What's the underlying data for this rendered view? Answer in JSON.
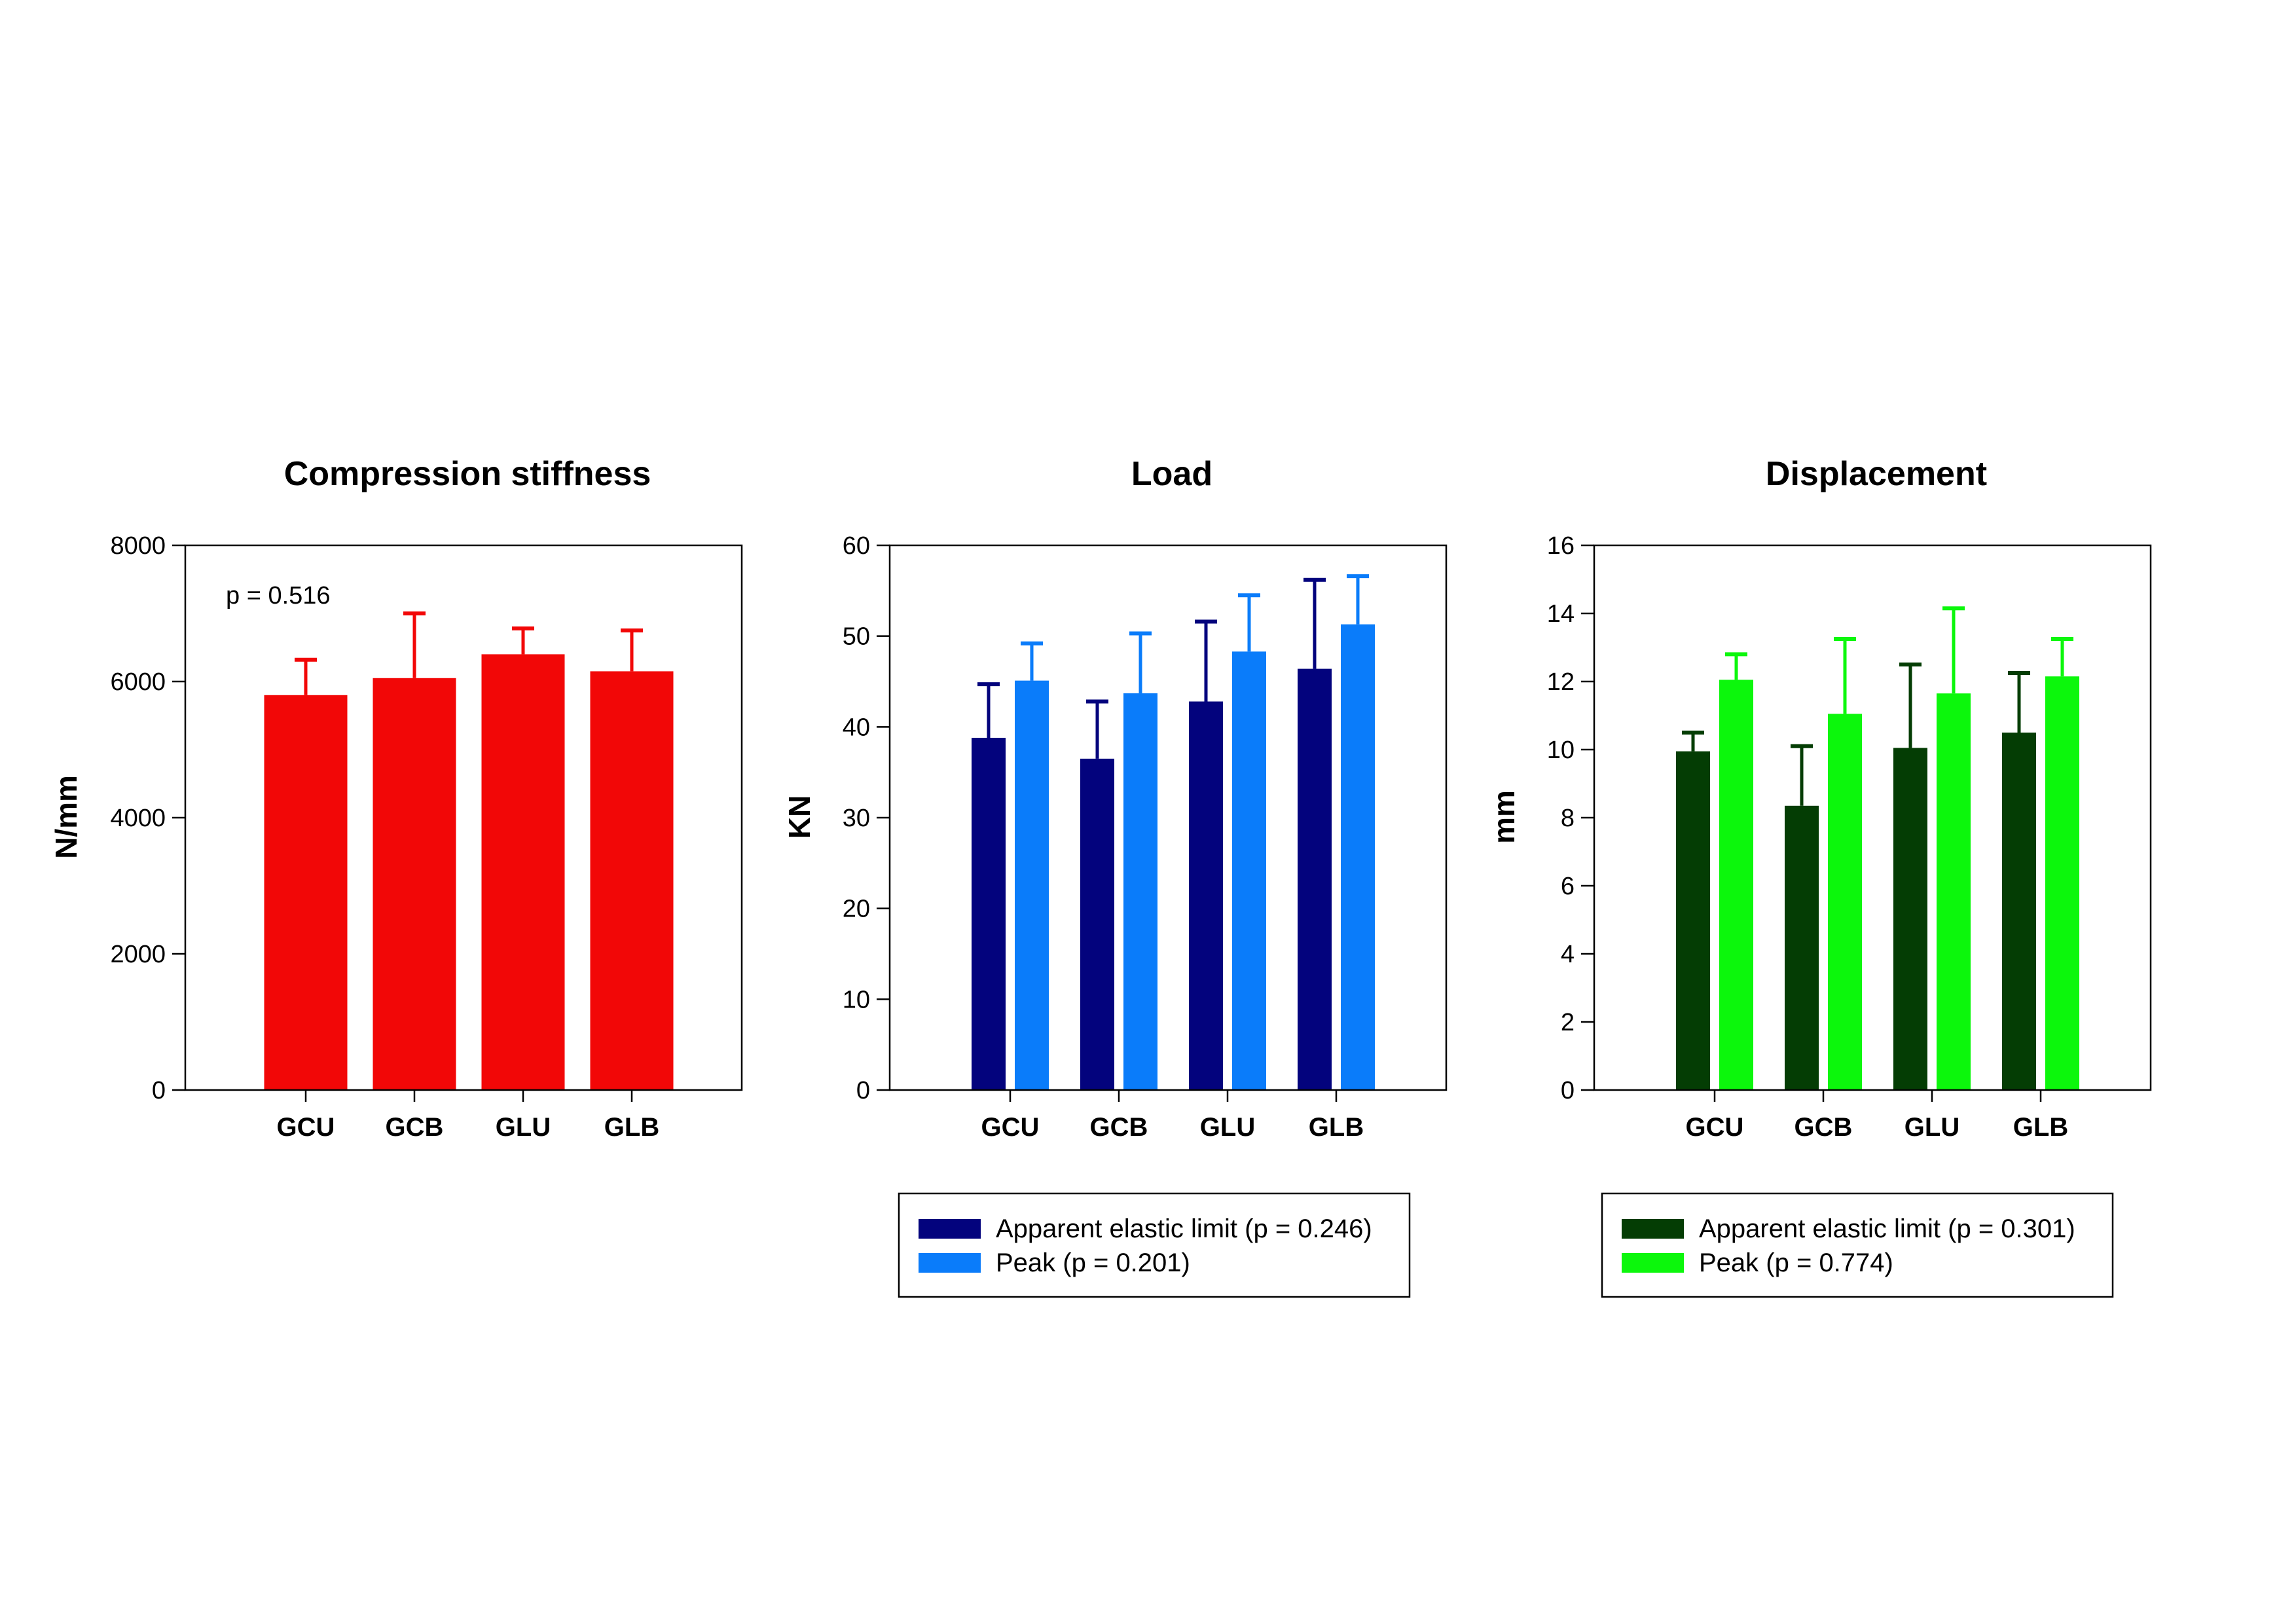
{
  "chart_data": [
    {
      "type": "bar",
      "title": "Compression stiffness",
      "ylabel": "N/mm",
      "xlabel": "",
      "ylim": [
        0,
        8000
      ],
      "yticks": [
        0,
        2000,
        4000,
        6000,
        8000
      ],
      "categories": [
        "GCU",
        "GCB",
        "GLU",
        "GLB"
      ],
      "annotation": "p = 0.516",
      "grid": false,
      "series": [
        {
          "values": [
            5800,
            6050,
            6400,
            6150
          ],
          "error": [
            520,
            950,
            380,
            600
          ],
          "color": "#f20707"
        }
      ]
    },
    {
      "type": "bar",
      "title": "Load",
      "ylabel": "KN",
      "xlabel": "",
      "ylim": [
        0,
        60
      ],
      "yticks": [
        0,
        10,
        20,
        30,
        40,
        50,
        60
      ],
      "categories": [
        "GCU",
        "GCB",
        "GLU",
        "GLB"
      ],
      "grid": false,
      "legend_position": "bottom",
      "series": [
        {
          "name": "Apparent elastic limit (p = 0.246)",
          "values": [
            38.8,
            36.5,
            42.8,
            46.4
          ],
          "error": [
            5.9,
            6.3,
            8.8,
            9.8
          ],
          "color": "#03037d"
        },
        {
          "name": "Peak (p = 0.201)",
          "values": [
            45.1,
            43.7,
            48.3,
            51.3
          ],
          "error": [
            4.1,
            6.6,
            6.2,
            5.3
          ],
          "color": "#0a7cfa"
        }
      ]
    },
    {
      "type": "bar",
      "title": "Displacement",
      "ylabel": "mm",
      "xlabel": "",
      "ylim": [
        0,
        16
      ],
      "yticks": [
        0,
        2,
        4,
        6,
        8,
        10,
        12,
        14,
        16
      ],
      "categories": [
        "GCU",
        "GCB",
        "GLU",
        "GLB"
      ],
      "grid": false,
      "legend_position": "bottom",
      "series": [
        {
          "name": "Apparent elastic limit (p = 0.301)",
          "values": [
            9.95,
            8.35,
            10.05,
            10.5
          ],
          "error": [
            0.55,
            1.75,
            2.45,
            1.75
          ],
          "color": "#043d04"
        },
        {
          "name": "Peak (p = 0.774)",
          "values": [
            12.05,
            11.05,
            11.65,
            12.15
          ],
          "error": [
            0.75,
            2.2,
            2.5,
            1.1
          ],
          "color": "#0cf70c"
        }
      ]
    }
  ]
}
